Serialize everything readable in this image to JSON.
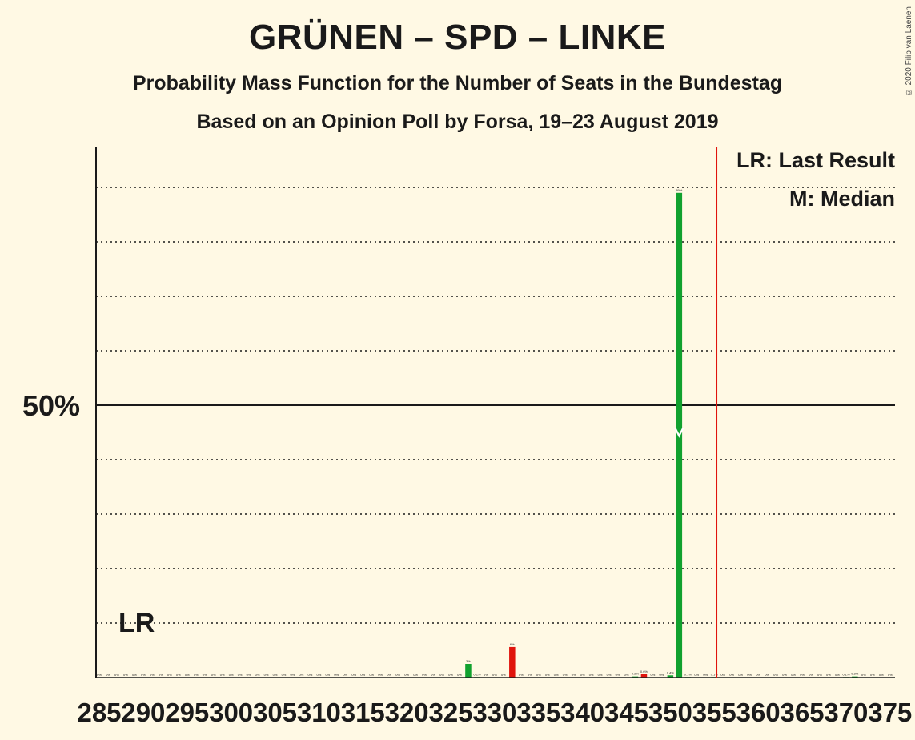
{
  "title": "GRÜNEN – SPD – LINKE",
  "subtitle": "Probability Mass Function for the Number of Seats in the Bundestag",
  "subtitle2": "Based on an Opinion Poll by Forsa, 19–23 August 2019",
  "copyright": "© 2020 Filip van Laenen",
  "legend": {
    "last_result": "LR: Last Result",
    "median": "M: Median"
  },
  "lr_marker": "LR",
  "colors": {
    "background": "#fff9e4",
    "green": "#11a12e",
    "red": "#e0140c",
    "last_result_line": "#e0140c",
    "text": "#1a1a1a"
  },
  "chart_data": {
    "type": "bar",
    "title": "GRÜNEN – SPD – LINKE",
    "xlabel": "",
    "ylabel": "",
    "ylim": [
      0,
      97
    ],
    "y_major_tick": {
      "value": 50,
      "label": "50%"
    },
    "y_gridlines": [
      10,
      20,
      30,
      40,
      60,
      70,
      80,
      90
    ],
    "xlim": [
      285,
      375
    ],
    "x_tick_labels": [
      "285",
      "290",
      "295",
      "300",
      "305",
      "310",
      "315",
      "320",
      "325",
      "330",
      "335",
      "340",
      "345",
      "350",
      "355",
      "360",
      "365",
      "370",
      "375"
    ],
    "last_result": 288,
    "median": 351,
    "majority_line": 355,
    "bars": [
      {
        "seats": 285,
        "value": 0,
        "label": "0%",
        "color": "#11a12e"
      },
      {
        "seats": 286,
        "value": 0,
        "label": "0%",
        "color": "#11a12e"
      },
      {
        "seats": 287,
        "value": 0,
        "label": "0%",
        "color": "#11a12e"
      },
      {
        "seats": 288,
        "value": 0,
        "label": "0%",
        "color": "#11a12e"
      },
      {
        "seats": 289,
        "value": 0,
        "label": "0%",
        "color": "#11a12e"
      },
      {
        "seats": 290,
        "value": 0,
        "label": "0%",
        "color": "#11a12e"
      },
      {
        "seats": 291,
        "value": 0,
        "label": "0%",
        "color": "#11a12e"
      },
      {
        "seats": 292,
        "value": 0,
        "label": "0%",
        "color": "#11a12e"
      },
      {
        "seats": 293,
        "value": 0,
        "label": "0%",
        "color": "#11a12e"
      },
      {
        "seats": 294,
        "value": 0,
        "label": "0%",
        "color": "#11a12e"
      },
      {
        "seats": 295,
        "value": 0,
        "label": "0%",
        "color": "#11a12e"
      },
      {
        "seats": 296,
        "value": 0,
        "label": "0%",
        "color": "#11a12e"
      },
      {
        "seats": 297,
        "value": 0,
        "label": "0%",
        "color": "#11a12e"
      },
      {
        "seats": 298,
        "value": 0,
        "label": "0%",
        "color": "#11a12e"
      },
      {
        "seats": 299,
        "value": 0,
        "label": "0%",
        "color": "#11a12e"
      },
      {
        "seats": 300,
        "value": 0,
        "label": "0%",
        "color": "#11a12e"
      },
      {
        "seats": 301,
        "value": 0,
        "label": "0%",
        "color": "#11a12e"
      },
      {
        "seats": 302,
        "value": 0,
        "label": "0%",
        "color": "#11a12e"
      },
      {
        "seats": 303,
        "value": 0,
        "label": "0%",
        "color": "#11a12e"
      },
      {
        "seats": 304,
        "value": 0,
        "label": "0%",
        "color": "#11a12e"
      },
      {
        "seats": 305,
        "value": 0,
        "label": "0%",
        "color": "#11a12e"
      },
      {
        "seats": 306,
        "value": 0,
        "label": "0%",
        "color": "#11a12e"
      },
      {
        "seats": 307,
        "value": 0,
        "label": "0%",
        "color": "#11a12e"
      },
      {
        "seats": 308,
        "value": 0,
        "label": "0%",
        "color": "#11a12e"
      },
      {
        "seats": 309,
        "value": 0,
        "label": "0%",
        "color": "#11a12e"
      },
      {
        "seats": 310,
        "value": 0,
        "label": "0%",
        "color": "#11a12e"
      },
      {
        "seats": 311,
        "value": 0,
        "label": "0%",
        "color": "#11a12e"
      },
      {
        "seats": 312,
        "value": 0,
        "label": "0%",
        "color": "#11a12e"
      },
      {
        "seats": 313,
        "value": 0,
        "label": "0%",
        "color": "#11a12e"
      },
      {
        "seats": 314,
        "value": 0,
        "label": "0%",
        "color": "#11a12e"
      },
      {
        "seats": 315,
        "value": 0,
        "label": "0%",
        "color": "#11a12e"
      },
      {
        "seats": 316,
        "value": 0,
        "label": "0%",
        "color": "#11a12e"
      },
      {
        "seats": 317,
        "value": 0,
        "label": "0%",
        "color": "#11a12e"
      },
      {
        "seats": 318,
        "value": 0,
        "label": "0%",
        "color": "#11a12e"
      },
      {
        "seats": 319,
        "value": 0,
        "label": "0%",
        "color": "#11a12e"
      },
      {
        "seats": 320,
        "value": 0,
        "label": "0%",
        "color": "#11a12e"
      },
      {
        "seats": 321,
        "value": 0,
        "label": "0%",
        "color": "#11a12e"
      },
      {
        "seats": 322,
        "value": 0,
        "label": "0%",
        "color": "#11a12e"
      },
      {
        "seats": 323,
        "value": 0,
        "label": "0%",
        "color": "#11a12e"
      },
      {
        "seats": 324,
        "value": 0,
        "label": "0%",
        "color": "#11a12e"
      },
      {
        "seats": 325,
        "value": 0,
        "label": "0%",
        "color": "#11a12e"
      },
      {
        "seats": 326,
        "value": 0,
        "label": "0%",
        "color": "#11a12e"
      },
      {
        "seats": 327,
        "value": 2.5,
        "label": "3%",
        "color": "#11a12e"
      },
      {
        "seats": 328,
        "value": 0.1,
        "label": "0.1%",
        "color": "#11a12e"
      },
      {
        "seats": 329,
        "value": 0,
        "label": "0%",
        "color": "#11a12e"
      },
      {
        "seats": 330,
        "value": 0,
        "label": "0%",
        "color": "#11a12e"
      },
      {
        "seats": 331,
        "value": 0,
        "label": "0%",
        "color": "#11a12e"
      },
      {
        "seats": 332,
        "value": 5.6,
        "label": "6%",
        "color": "#e0140c"
      },
      {
        "seats": 333,
        "value": 0,
        "label": "0%",
        "color": "#11a12e"
      },
      {
        "seats": 334,
        "value": 0,
        "label": "0%",
        "color": "#11a12e"
      },
      {
        "seats": 335,
        "value": 0,
        "label": "0%",
        "color": "#11a12e"
      },
      {
        "seats": 336,
        "value": 0,
        "label": "0%",
        "color": "#11a12e"
      },
      {
        "seats": 337,
        "value": 0,
        "label": "0%",
        "color": "#11a12e"
      },
      {
        "seats": 338,
        "value": 0,
        "label": "0%",
        "color": "#11a12e"
      },
      {
        "seats": 339,
        "value": 0,
        "label": "0%",
        "color": "#11a12e"
      },
      {
        "seats": 340,
        "value": 0,
        "label": "0%",
        "color": "#11a12e"
      },
      {
        "seats": 341,
        "value": 0,
        "label": "0%",
        "color": "#11a12e"
      },
      {
        "seats": 342,
        "value": 0,
        "label": "0%",
        "color": "#11a12e"
      },
      {
        "seats": 343,
        "value": 0,
        "label": "0%",
        "color": "#11a12e"
      },
      {
        "seats": 344,
        "value": 0,
        "label": "0%",
        "color": "#11a12e"
      },
      {
        "seats": 345,
        "value": 0,
        "label": "0%",
        "color": "#11a12e"
      },
      {
        "seats": 346,
        "value": 0.2,
        "label": "0.2%",
        "color": "#11a12e"
      },
      {
        "seats": 347,
        "value": 0.6,
        "label": "0.6%",
        "color": "#e0140c"
      },
      {
        "seats": 348,
        "value": 0,
        "label": "0%",
        "color": "#11a12e"
      },
      {
        "seats": 349,
        "value": 0,
        "label": "0%",
        "color": "#11a12e"
      },
      {
        "seats": 350,
        "value": 0.4,
        "label": "0.4%",
        "color": "#11a12e"
      },
      {
        "seats": 351,
        "value": 89,
        "label": "89%",
        "color": "#11a12e"
      },
      {
        "seats": 352,
        "value": 0.1,
        "label": "0.1%",
        "color": "#11a12e"
      },
      {
        "seats": 353,
        "value": 0,
        "label": "0%",
        "color": "#11a12e"
      },
      {
        "seats": 354,
        "value": 0,
        "label": "0%",
        "color": "#11a12e"
      },
      {
        "seats": 355,
        "value": 0.1,
        "label": "0.1%",
        "color": "#11a12e"
      },
      {
        "seats": 356,
        "value": 0,
        "label": "0%",
        "color": "#11a12e"
      },
      {
        "seats": 357,
        "value": 0,
        "label": "0%",
        "color": "#11a12e"
      },
      {
        "seats": 358,
        "value": 0,
        "label": "0%",
        "color": "#11a12e"
      },
      {
        "seats": 359,
        "value": 0,
        "label": "0%",
        "color": "#11a12e"
      },
      {
        "seats": 360,
        "value": 0,
        "label": "0%",
        "color": "#11a12e"
      },
      {
        "seats": 361,
        "value": 0,
        "label": "0%",
        "color": "#11a12e"
      },
      {
        "seats": 362,
        "value": 0,
        "label": "0%",
        "color": "#11a12e"
      },
      {
        "seats": 363,
        "value": 0,
        "label": "0%",
        "color": "#11a12e"
      },
      {
        "seats": 364,
        "value": 0,
        "label": "0%",
        "color": "#11a12e"
      },
      {
        "seats": 365,
        "value": 0,
        "label": "0%",
        "color": "#11a12e"
      },
      {
        "seats": 366,
        "value": 0,
        "label": "0%",
        "color": "#11a12e"
      },
      {
        "seats": 367,
        "value": 0,
        "label": "0%",
        "color": "#11a12e"
      },
      {
        "seats": 368,
        "value": 0,
        "label": "0%",
        "color": "#11a12e"
      },
      {
        "seats": 369,
        "value": 0,
        "label": "0%",
        "color": "#11a12e"
      },
      {
        "seats": 370,
        "value": 0.1,
        "label": "0.1%",
        "color": "#11a12e"
      },
      {
        "seats": 371,
        "value": 0.2,
        "label": "0.2%",
        "color": "#11a12e"
      },
      {
        "seats": 372,
        "value": 0,
        "label": "0%",
        "color": "#11a12e"
      },
      {
        "seats": 373,
        "value": 0,
        "label": "0%",
        "color": "#11a12e"
      },
      {
        "seats": 374,
        "value": 0,
        "label": "0%",
        "color": "#11a12e"
      },
      {
        "seats": 375,
        "value": 0,
        "label": "0%",
        "color": "#11a12e"
      }
    ]
  }
}
